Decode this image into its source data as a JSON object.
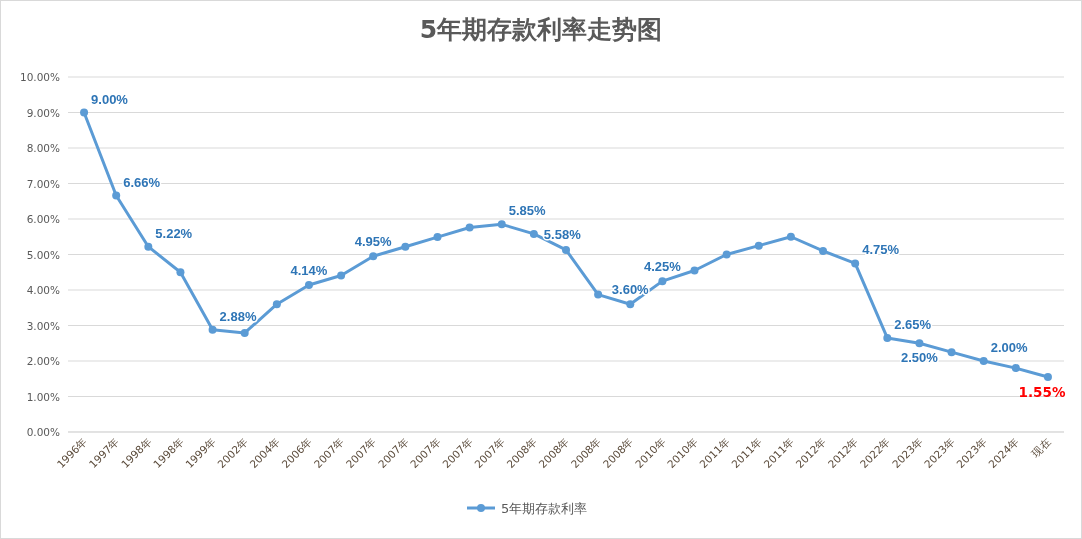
{
  "chart_data": {
    "type": "line",
    "title": "5年期存款利率走势图",
    "categories": [
      "1996年",
      "1997年",
      "1998年",
      "1998年",
      "1999年",
      "2002年",
      "2004年",
      "2006年",
      "2007年",
      "2007年",
      "2007年",
      "2007年",
      "2007年",
      "2007年",
      "2008年",
      "2008年",
      "2008年",
      "2008年",
      "2010年",
      "2010年",
      "2011年",
      "2011年",
      "2011年",
      "2012年",
      "2012年",
      "2022年",
      "2023年",
      "2023年",
      "2023年",
      "2024年",
      "现在"
    ],
    "series": [
      {
        "name": "5年期存款利率",
        "color": "#5b9bd5",
        "values": [
          9.0,
          6.66,
          5.22,
          4.5,
          2.88,
          2.79,
          3.6,
          4.14,
          4.41,
          4.95,
          5.22,
          5.49,
          5.76,
          5.85,
          5.58,
          5.13,
          3.87,
          3.6,
          4.25,
          4.55,
          5.0,
          5.25,
          5.5,
          5.1,
          4.75,
          2.65,
          2.5,
          2.25,
          2.0,
          1.8,
          1.55
        ],
        "value_labels": [
          "9.00%",
          "6.66%",
          "5.22%",
          null,
          "2.88%",
          null,
          null,
          "4.14%",
          null,
          "4.95%",
          null,
          null,
          null,
          "5.85%",
          "5.58%",
          null,
          null,
          "3.60%",
          "4.25%",
          null,
          null,
          null,
          null,
          null,
          "4.75%",
          "2.65%",
          "2.50%",
          null,
          "2.00%",
          null,
          null
        ]
      }
    ],
    "annotations": [
      {
        "text": "1.55%",
        "x": "现在",
        "y": 1.55
      }
    ],
    "ylim": [
      0,
      10
    ],
    "yticks": [
      {
        "value": 0,
        "label": "0.00%"
      },
      {
        "value": 1,
        "label": "1.00%"
      },
      {
        "value": 2,
        "label": "2.00%"
      },
      {
        "value": 3,
        "label": "3.00%"
      },
      {
        "value": 4,
        "label": "4.00%"
      },
      {
        "value": 5,
        "label": "5.00%"
      },
      {
        "value": 6,
        "label": "6.00%"
      },
      {
        "value": 7,
        "label": "7.00%"
      },
      {
        "value": 8,
        "label": "8.00%"
      },
      {
        "value": 9,
        "label": "9.00%"
      },
      {
        "value": 10,
        "label": "10.00%"
      }
    ],
    "grid": "y",
    "legend": "bottom",
    "marker": "circle",
    "line_style": "solid"
  }
}
